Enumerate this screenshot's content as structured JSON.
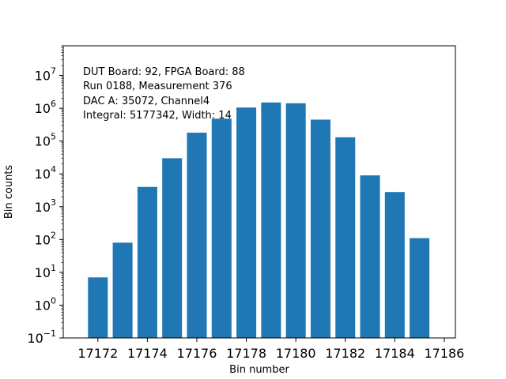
{
  "chart_data": {
    "type": "bar",
    "yscale": "log",
    "xlabel": "Bin number",
    "ylabel": "Bin counts",
    "x": [
      17172,
      17173,
      17174,
      17175,
      17176,
      17177,
      17178,
      17179,
      17180,
      17181,
      17182,
      17183,
      17184,
      17185
    ],
    "values": [
      7,
      80,
      4000,
      30000,
      180000,
      480000,
      1050000,
      1500000,
      1420000,
      450000,
      130000,
      9000,
      2800,
      110
    ],
    "xlim": [
      16170.5,
      17186.5
    ],
    "ylim": [
      0.1,
      80000000
    ],
    "xticks": [
      17172,
      17174,
      17176,
      17178,
      17180,
      17182,
      17184,
      17186
    ],
    "xtick_labels": [
      "17172",
      "17174",
      "17176",
      "17178",
      "17180",
      "17182",
      "17184",
      "17186"
    ],
    "ytick_exponents": [
      "−1",
      "0",
      "1",
      "2",
      "3",
      "4",
      "5",
      "6",
      "7"
    ],
    "bar_color": "#1f77b4",
    "grid": false,
    "legend": "none",
    "annotations": [
      "DUT Board: 92, FPGA Board: 88",
      "Run 0188, Measurement 376",
      "DAC A: 35072, Channel4",
      "Integral: 5177342, Width: 14"
    ]
  }
}
